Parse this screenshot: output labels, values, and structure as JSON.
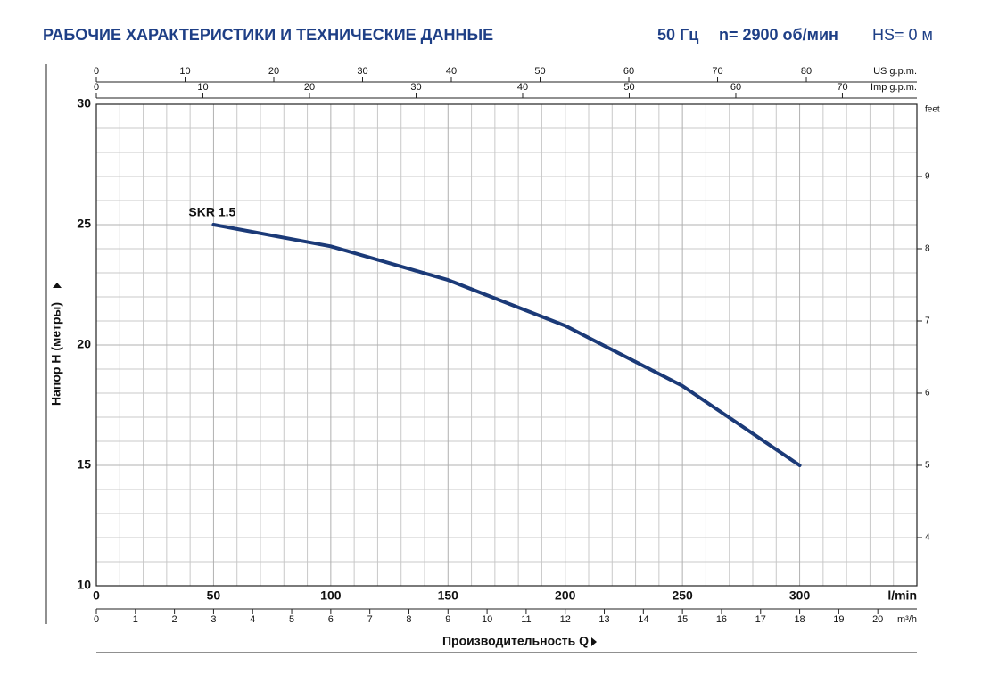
{
  "chart_data": {
    "type": "line",
    "title": "РАБОЧИЕ ХАРАКТЕРИСТИКИ И ТЕХНИЧЕСКИЕ ДАННЫЕ",
    "subtitle": [
      "50 Гц",
      "n= 2900 об/мин",
      "HS= 0 м"
    ],
    "x_label": "Производительность Q",
    "x_unit": "l/min",
    "y_label": "Напор H (метры)",
    "xlim": [
      0,
      350
    ],
    "xticks": [
      0,
      50,
      100,
      150,
      200,
      250,
      300
    ],
    "x_grid": [
      10,
      20,
      30,
      40,
      60,
      70,
      80,
      90,
      110,
      120,
      130,
      140,
      160,
      170,
      180,
      190,
      210,
      220,
      230,
      240,
      260,
      270,
      280,
      290,
      310,
      320,
      330,
      340
    ],
    "ylim": [
      10,
      30
    ],
    "yticks": [
      10,
      15,
      20,
      25,
      30
    ],
    "y_grid": [
      11,
      12,
      13,
      14,
      16,
      17,
      18,
      19,
      21,
      22,
      23,
      24,
      26,
      27,
      28,
      29
    ],
    "grid": true,
    "extra_x_axes": [
      {
        "label": "US g.p.m.",
        "position": "top",
        "xlim": [
          0,
          92.46
        ],
        "xticks": [
          0,
          10,
          20,
          30,
          40,
          50,
          60,
          70,
          80
        ]
      },
      {
        "label": "Imp g.p.m.",
        "position": "top",
        "xlim": [
          0,
          76.99
        ],
        "xticks": [
          0,
          10,
          20,
          30,
          40,
          50,
          60,
          70
        ]
      },
      {
        "label": "m³/h",
        "position": "bottom",
        "xlim": [
          0,
          21
        ],
        "xticks": [
          0,
          1,
          2,
          3,
          4,
          5,
          6,
          7,
          8,
          9,
          10,
          11,
          12,
          13,
          14,
          15,
          16,
          17,
          18,
          19,
          20
        ]
      }
    ],
    "y2_label": "feet",
    "y2lim": [
      3.333,
      10
    ],
    "y2ticks": [
      4,
      5,
      6,
      7,
      8,
      9
    ],
    "series": [
      {
        "name": "SKR 1.5",
        "color": "#1b3a78",
        "x": [
          50,
          100,
          150,
          200,
          250,
          300
        ],
        "values": [
          25,
          24.1,
          22.7,
          20.8,
          18.3,
          15
        ]
      }
    ]
  }
}
